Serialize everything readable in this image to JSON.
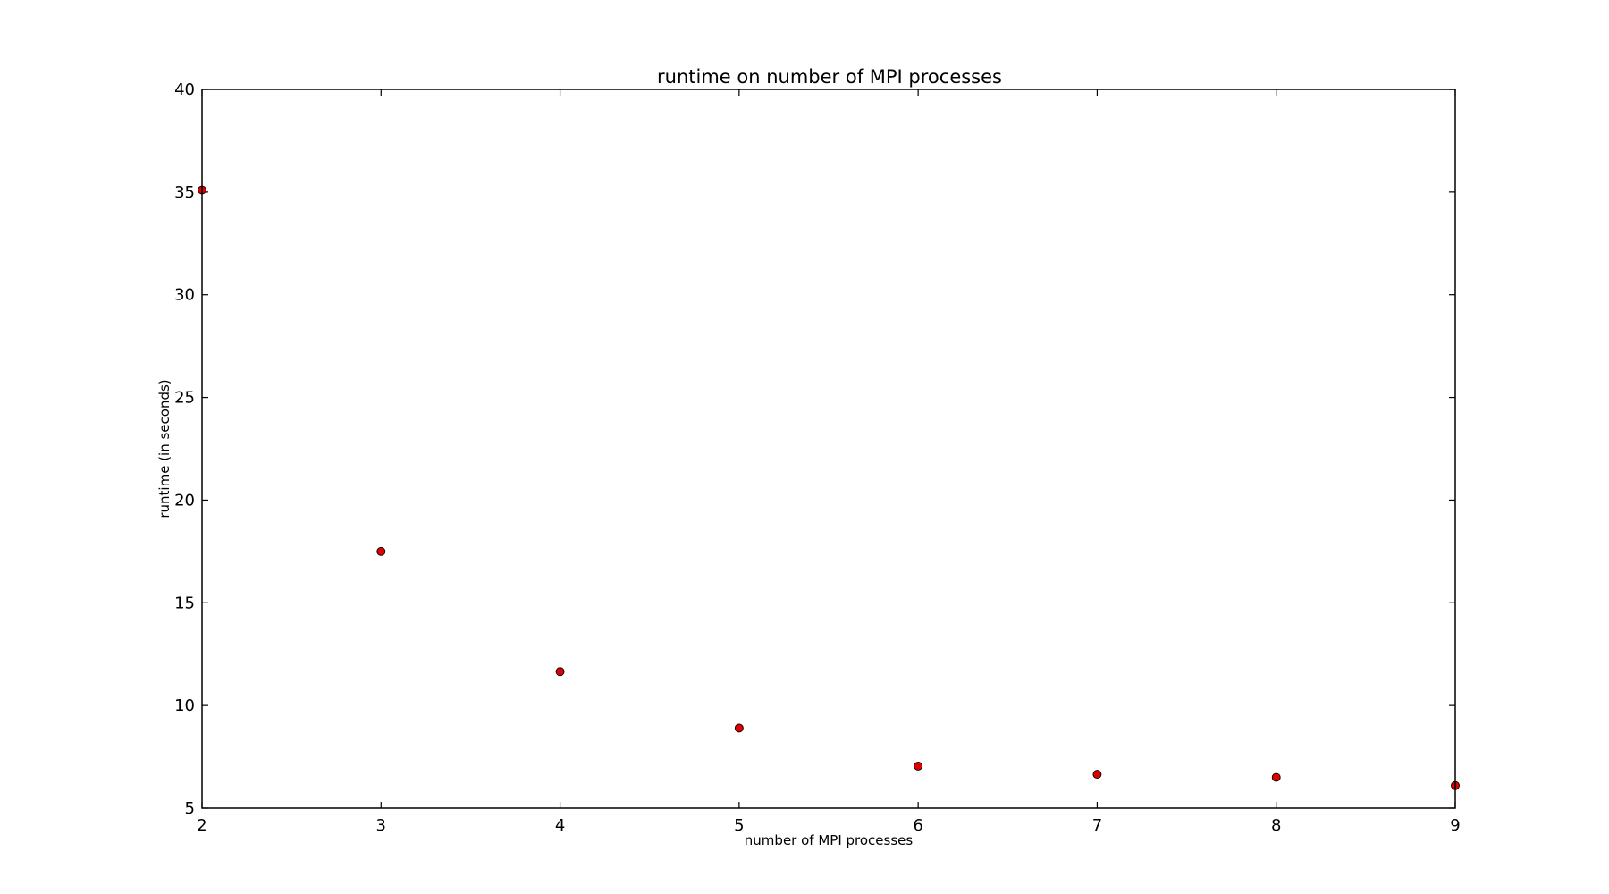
{
  "chart_data": {
    "type": "scatter",
    "title": "runtime on number of MPI processes",
    "xlabel": "number of MPI processes",
    "ylabel": "runtime (in seconds)",
    "xlim": [
      2,
      9
    ],
    "ylim": [
      5,
      40
    ],
    "xticks": [
      "2",
      "3",
      "4",
      "5",
      "6",
      "7",
      "8",
      "9"
    ],
    "yticks": [
      "5",
      "10",
      "15",
      "20",
      "25",
      "30",
      "35",
      "40"
    ],
    "grid": false,
    "marker_color": "#e00000",
    "series": [
      {
        "x": [
          2,
          3,
          4,
          5,
          6,
          7,
          8,
          9
        ],
        "y": [
          35.1,
          17.5,
          11.65,
          8.9,
          7.05,
          6.65,
          6.5,
          6.1
        ]
      }
    ]
  }
}
